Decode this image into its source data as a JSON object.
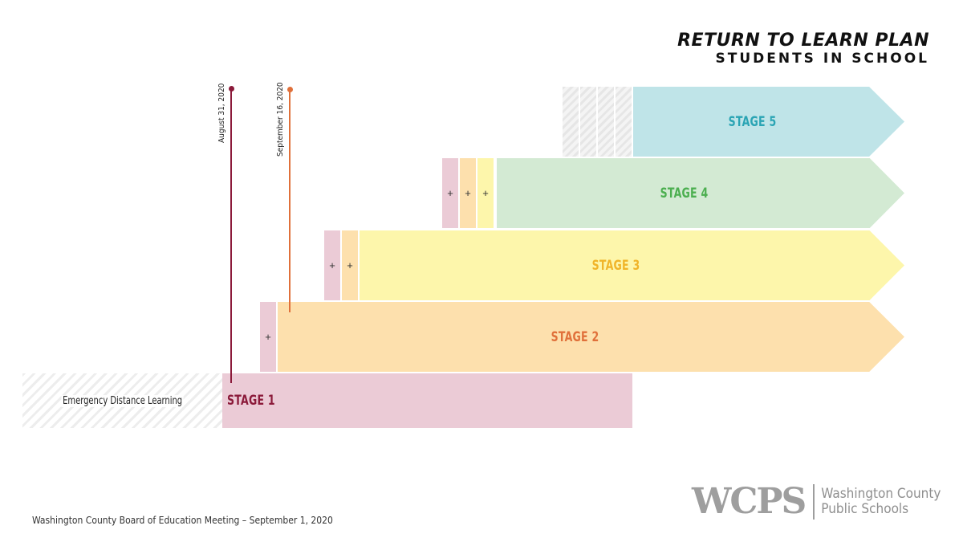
{
  "title": {
    "line1": "RETURN TO LEARN PLAN",
    "line2": "STUDENTS IN SCHOOL"
  },
  "stages": {
    "stage1": {
      "label": "STAGE 1",
      "color": "#8b1a3a"
    },
    "stage2": {
      "label": "STAGE 2",
      "color": "#e0703a"
    },
    "stage3": {
      "label": "STAGE 3",
      "color": "#f0b429"
    },
    "stage4": {
      "label": "STAGE 4",
      "color": "#4caf50"
    },
    "stage5": {
      "label": "STAGE 5",
      "color": "#2aa4b4"
    }
  },
  "plus_symbol": "+",
  "emergency_label": "Emergency Distance Learning",
  "markers": [
    {
      "label": "August 31, 2020",
      "color": "#8b1a3a"
    },
    {
      "label": "September 16, 2020",
      "color": "#e0703a"
    }
  ],
  "footer": "Washington County Board of Education Meeting – September 1, 2020",
  "logo": {
    "mark": "WCPS",
    "line1": "Washington County",
    "line2": "Public Schools"
  }
}
